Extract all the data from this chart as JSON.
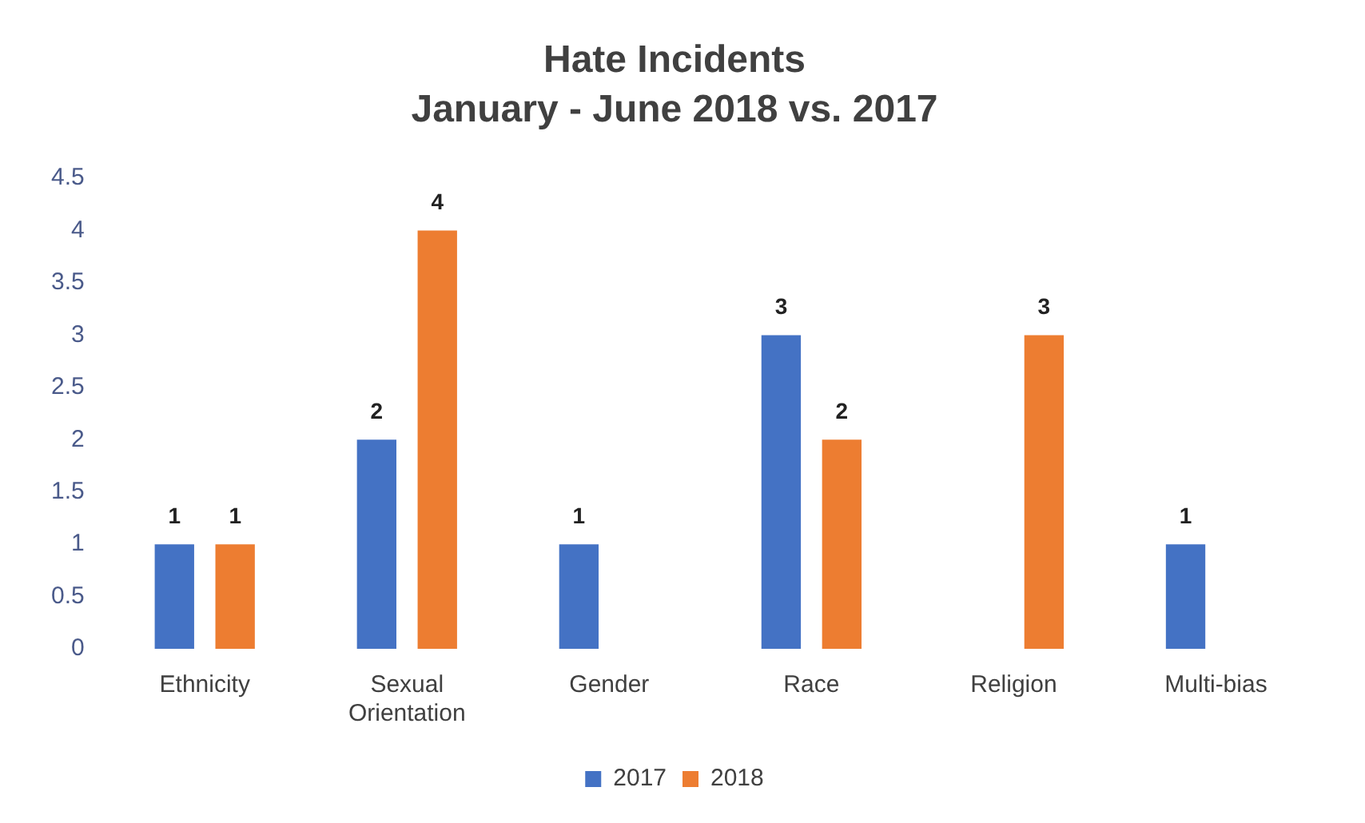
{
  "chart_data": {
    "type": "bar",
    "title": "Hate Incidents",
    "subtitle": "January - June 2018 vs. 2017",
    "categories": [
      "Ethnicity",
      "Sexual Orientation",
      "Gender",
      "Race",
      "Religion",
      "Multi-bias"
    ],
    "series": [
      {
        "name": "2017",
        "color": "#4472c4",
        "values": [
          1,
          2,
          1,
          3,
          null,
          1
        ]
      },
      {
        "name": "2018",
        "color": "#ed7d31",
        "values": [
          1,
          4,
          null,
          2,
          3,
          null
        ]
      }
    ],
    "ylim": [
      0,
      4.5
    ],
    "yticks": [
      0,
      0.5,
      1,
      1.5,
      2,
      2.5,
      3,
      3.5,
      4,
      4.5
    ],
    "grid": false,
    "legend": "bottom",
    "data_labels": true
  }
}
